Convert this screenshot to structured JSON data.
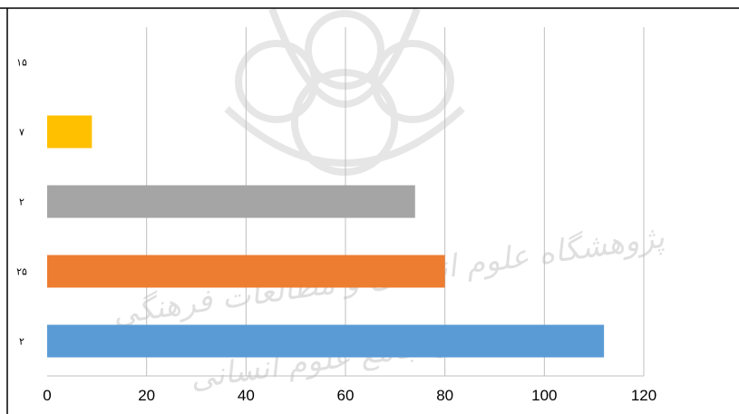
{
  "chart_data": {
    "type": "bar",
    "orientation": "horizontal",
    "categories": [
      "۲",
      "۲۵",
      "۲",
      "۷",
      "۱۵"
    ],
    "values": [
      112,
      80,
      74,
      9,
      0
    ],
    "bar_colors": [
      "#5b9bd5",
      "#ed7d31",
      "#a5a5a5",
      "#ffc000",
      "#4472c4"
    ],
    "xlim": [
      0,
      120
    ],
    "x_ticks": [
      "0",
      "20",
      "40",
      "60",
      "80",
      "100",
      "120"
    ],
    "grid": "vertical",
    "legend": "none",
    "title": "",
    "xlabel": "",
    "ylabel": ""
  },
  "watermark": {
    "line1": "پژوهشگاه علوم انسانی و مطالعات فرهنگی",
    "line2": "پرتال جامع علوم انسانی"
  }
}
